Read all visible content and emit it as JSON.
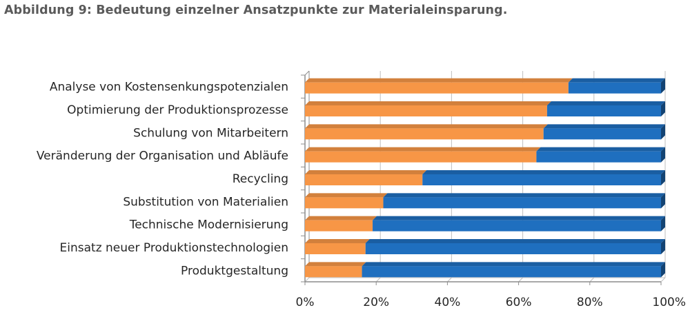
{
  "figure": {
    "title": "Abbildung 9: Bedeutung einzelner Ansatzpunkte zur Materialeinsparung."
  },
  "colors": {
    "series_1": "#f79646",
    "series_2": "#1f6fbf",
    "axis": "#8c8c8c",
    "gridline": "#bfbfbf"
  },
  "chart_data": {
    "type": "bar",
    "orientation": "horizontal",
    "stacked": "100%",
    "categories": [
      "Analyse von Kostensenkungspotenzialen",
      "Optimierung der Produktionsprozesse",
      "Schulung von Mitarbeitern",
      "Veränderung der Organisation und Abläufe",
      "Recycling",
      "Substitution von Materialien",
      "Technische Modernisierung",
      "Einsatz neuer Produktionstechnologien",
      "Produktgestaltung"
    ],
    "series": [
      {
        "values": [
          74,
          68,
          67,
          65,
          33,
          22,
          19,
          17,
          16
        ]
      },
      {
        "values": [
          26,
          32,
          33,
          35,
          67,
          78,
          81,
          83,
          84
        ]
      }
    ],
    "xlim": [
      0,
      100
    ],
    "xticks": [
      "0%",
      "20%",
      "40%",
      "60%",
      "80%",
      "100%"
    ],
    "xlabel": "",
    "ylabel": "",
    "grid": true,
    "legend": "none"
  }
}
